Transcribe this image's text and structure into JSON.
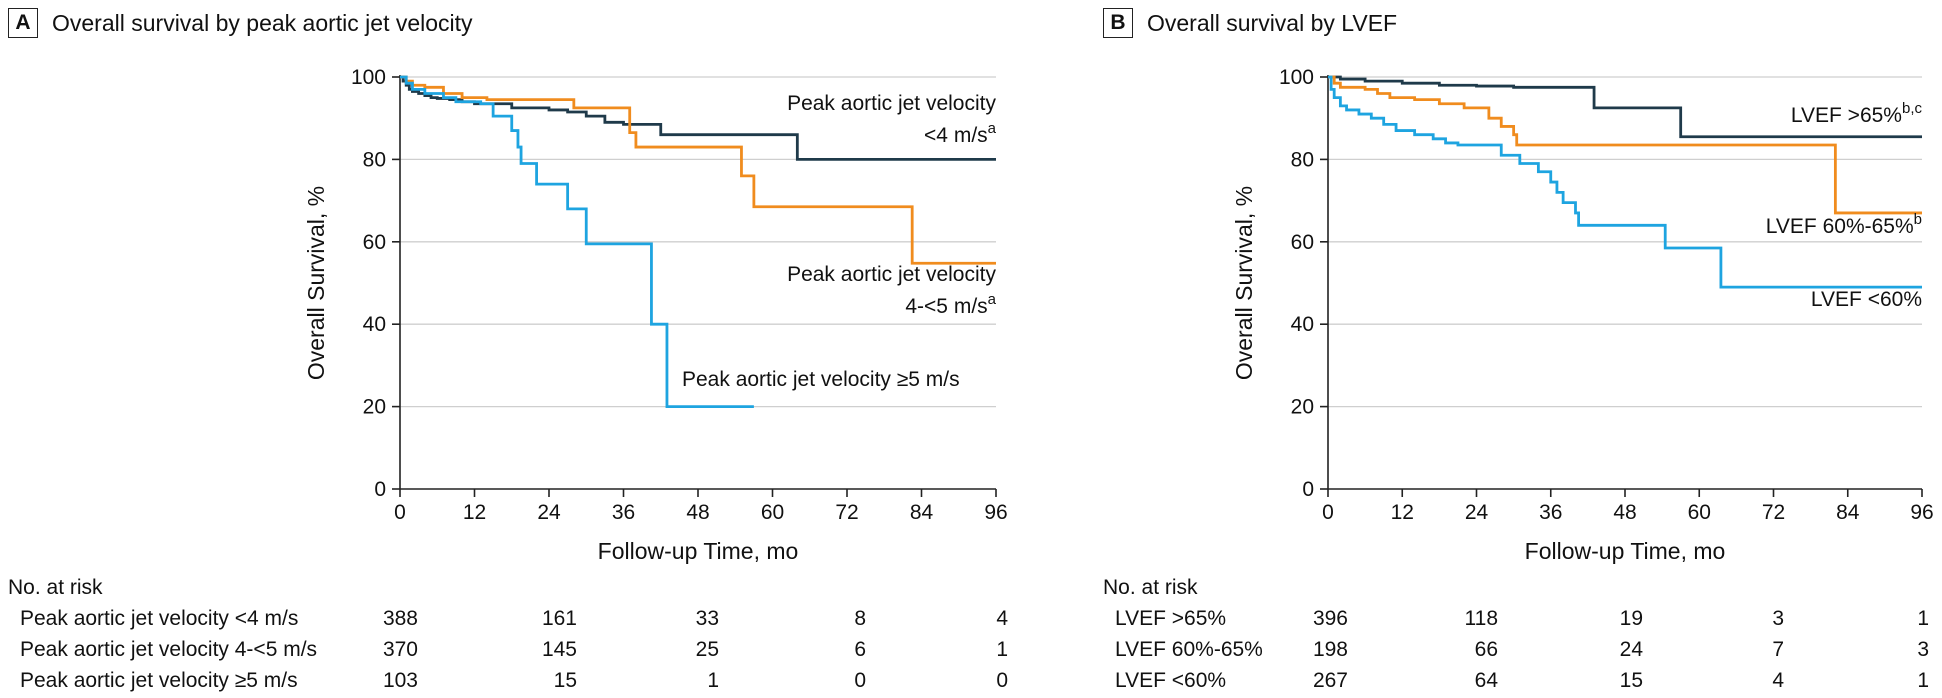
{
  "panels": [
    {
      "letter": "A",
      "title": "Overall survival by peak aortic jet velocity",
      "chart_data": {
        "type": "line",
        "step": true,
        "xlabel": "Follow-up Time, mo",
        "ylabel": "Overall Survival, %",
        "xlim": [
          0,
          96
        ],
        "ylim": [
          0,
          100
        ],
        "xticks": [
          0,
          12,
          24,
          36,
          48,
          60,
          72,
          84,
          96
        ],
        "yticks": [
          0,
          20,
          40,
          60,
          80,
          100
        ],
        "grid": "horizontal",
        "series": [
          {
            "name": "Peak aortic jet velocity <4 m/s",
            "color": "#1f3a4a",
            "points": [
              [
                0,
                100
              ],
              [
                0.5,
                99
              ],
              [
                1,
                98
              ],
              [
                1.5,
                97
              ],
              [
                2,
                96.5
              ],
              [
                3,
                96
              ],
              [
                4,
                95.5
              ],
              [
                5,
                95
              ],
              [
                6,
                94.8
              ],
              [
                8,
                94.5
              ],
              [
                10,
                94
              ],
              [
                12,
                93.5
              ],
              [
                18,
                92.5
              ],
              [
                24,
                92
              ],
              [
                27,
                91.5
              ],
              [
                30,
                90.5
              ],
              [
                33,
                89
              ],
              [
                36,
                88.5
              ],
              [
                42,
                86
              ],
              [
                48,
                86
              ],
              [
                54,
                86
              ],
              [
                64,
                80
              ],
              [
                96,
                80
              ]
            ]
          },
          {
            "name": "Peak aortic jet velocity 4-<5 m/s",
            "color": "#f08c1e",
            "points": [
              [
                0,
                100
              ],
              [
                1,
                99
              ],
              [
                2,
                98
              ],
              [
                4,
                97.5
              ],
              [
                7,
                96
              ],
              [
                10,
                95
              ],
              [
                14,
                94.5
              ],
              [
                20,
                94.5
              ],
              [
                28,
                92.5
              ],
              [
                36,
                92.5
              ],
              [
                37,
                86.5
              ],
              [
                38,
                83
              ],
              [
                54,
                83
              ],
              [
                55,
                76
              ],
              [
                57,
                68.5
              ],
              [
                82,
                68.5
              ],
              [
                82.5,
                54.8
              ],
              [
                96,
                54.8
              ]
            ]
          },
          {
            "name": "Peak aortic jet velocity ≥5 m/s",
            "color": "#1ea4e0",
            "points": [
              [
                0,
                100
              ],
              [
                1,
                98.5
              ],
              [
                2,
                97
              ],
              [
                4,
                96
              ],
              [
                7,
                95
              ],
              [
                9,
                94
              ],
              [
                13,
                93.5
              ],
              [
                15,
                90.5
              ],
              [
                18,
                87
              ],
              [
                19,
                83
              ],
              [
                19.5,
                79
              ],
              [
                22,
                74
              ],
              [
                27,
                68
              ],
              [
                30,
                59.5
              ],
              [
                40,
                59.5
              ],
              [
                40.5,
                40
              ],
              [
                43,
                20
              ],
              [
                57,
                20
              ]
            ]
          }
        ]
      },
      "line_labels": [
        {
          "line1": "Peak aortic jet velocity",
          "line2": "<4 m/s",
          "sup": "a"
        },
        {
          "line1": "Peak aortic jet velocity",
          "line2": "4-<5 m/s",
          "sup": "a"
        },
        {
          "line1": "Peak aortic jet velocity ≥5 m/s",
          "line2": "",
          "sup": ""
        }
      ],
      "risk_table": {
        "header": "No. at risk",
        "columns_months": [
          0,
          24,
          48,
          72,
          96
        ],
        "rows": [
          {
            "label": "Peak aortic jet velocity <4 m/s",
            "values": [
              "388",
              "161",
              "33",
              "8",
              "4"
            ]
          },
          {
            "label": "Peak aortic jet velocity 4-<5 m/s",
            "values": [
              "370",
              "145",
              "25",
              "6",
              "1"
            ]
          },
          {
            "label": "Peak aortic jet velocity ≥5 m/s",
            "values": [
              "103",
              "15",
              "1",
              "0",
              "0"
            ]
          }
        ]
      }
    },
    {
      "letter": "B",
      "title": "Overall survival by LVEF",
      "chart_data": {
        "type": "line",
        "step": true,
        "xlabel": "Follow-up Time, mo",
        "ylabel": "Overall Survival, %",
        "xlim": [
          0,
          96
        ],
        "ylim": [
          0,
          100
        ],
        "xticks": [
          0,
          12,
          24,
          36,
          48,
          60,
          72,
          84,
          96
        ],
        "yticks": [
          0,
          20,
          40,
          60,
          80,
          100
        ],
        "grid": "horizontal",
        "series": [
          {
            "name": "LVEF >65%",
            "color": "#1f3a4a",
            "points": [
              [
                0,
                100
              ],
              [
                2,
                99.5
              ],
              [
                6,
                99
              ],
              [
                12,
                98.5
              ],
              [
                18,
                98
              ],
              [
                24,
                97.8
              ],
              [
                30,
                97.5
              ],
              [
                36,
                97.5
              ],
              [
                42,
                97.5
              ],
              [
                43,
                92.5
              ],
              [
                56,
                92.5
              ],
              [
                57,
                85.5
              ],
              [
                96,
                85.5
              ]
            ]
          },
          {
            "name": "LVEF 60%-65%",
            "color": "#f08c1e",
            "points": [
              [
                0,
                100
              ],
              [
                1,
                98.5
              ],
              [
                2,
                97.5
              ],
              [
                6,
                97
              ],
              [
                8,
                96
              ],
              [
                10,
                95
              ],
              [
                14,
                94.5
              ],
              [
                18,
                93.5
              ],
              [
                22,
                92.5
              ],
              [
                26,
                90
              ],
              [
                28,
                88
              ],
              [
                30,
                86
              ],
              [
                30.5,
                83.5
              ],
              [
                81,
                83.5
              ],
              [
                82,
                67
              ],
              [
                96,
                67
              ]
            ]
          },
          {
            "name": "LVEF <60%",
            "color": "#1ea4e0",
            "points": [
              [
                0,
                100
              ],
              [
                0.5,
                97
              ],
              [
                1,
                95
              ],
              [
                2,
                93
              ],
              [
                3,
                92
              ],
              [
                5,
                91
              ],
              [
                7,
                90
              ],
              [
                9,
                88.5
              ],
              [
                11,
                87
              ],
              [
                14,
                86
              ],
              [
                17,
                85
              ],
              [
                19,
                84
              ],
              [
                21,
                83.5
              ],
              [
                27,
                83.5
              ],
              [
                28,
                81
              ],
              [
                31,
                79
              ],
              [
                34,
                77
              ],
              [
                36,
                74.5
              ],
              [
                37,
                72
              ],
              [
                38,
                69.5
              ],
              [
                40,
                67
              ],
              [
                40.5,
                64
              ],
              [
                54,
                64
              ],
              [
                54.5,
                58.5
              ],
              [
                63,
                58.5
              ],
              [
                63.5,
                49
              ],
              [
                96,
                49
              ]
            ]
          }
        ]
      },
      "line_labels": [
        {
          "line1": "LVEF >65%",
          "line2": "",
          "sup": "b,c"
        },
        {
          "line1": "LVEF 60%-65%",
          "line2": "",
          "sup": "b"
        },
        {
          "line1": "LVEF <60%",
          "line2": "",
          "sup": ""
        }
      ],
      "risk_table": {
        "header": "No. at risk",
        "columns_months": [
          0,
          24,
          48,
          72,
          96
        ],
        "rows": [
          {
            "label": "LVEF >65%",
            "values": [
              "396",
              "118",
              "19",
              "3",
              "1"
            ]
          },
          {
            "label": "LVEF 60%-65%",
            "values": [
              "198",
              "66",
              "24",
              "7",
              "3"
            ]
          },
          {
            "label": "LVEF <60%",
            "values": [
              "267",
              "64",
              "15",
              "4",
              "1"
            ]
          }
        ]
      }
    }
  ]
}
